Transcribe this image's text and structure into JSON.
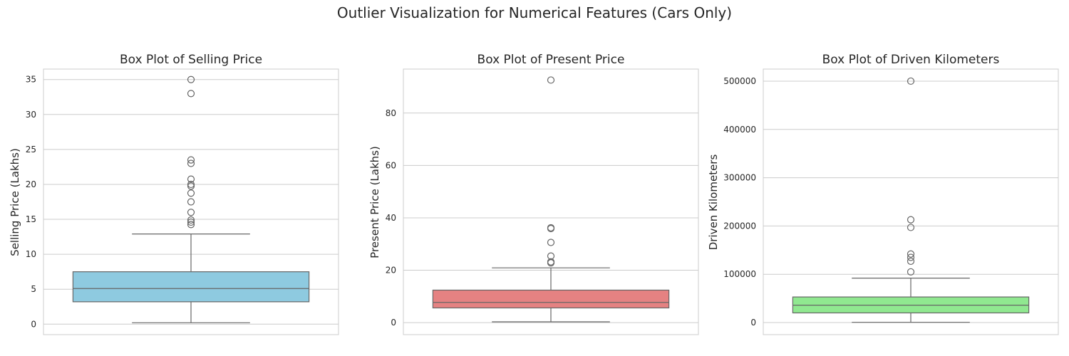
{
  "figure_title": "Outlier Visualization for Numerical Features (Cars Only)",
  "chart_data": [
    {
      "type": "box",
      "title": "Box Plot of Selling Price",
      "xlabel": "",
      "ylabel": "Selling Price (Lakhs)",
      "ylim": [
        -1.5,
        36.5
      ],
      "yticks": [
        0,
        5,
        10,
        15,
        20,
        25,
        30,
        35
      ],
      "ytick_labels": [
        "0",
        "5",
        "10",
        "15",
        "20",
        "25",
        "30",
        "35"
      ],
      "color": "#8ecae0",
      "grid": true,
      "box": {
        "min": 0.2,
        "q1": 3.2,
        "median": 5.1,
        "q3": 7.5,
        "max": 12.9
      },
      "outliers": [
        35.0,
        33.0,
        23.5,
        23.0,
        20.75,
        20.0,
        19.75,
        18.75,
        17.5,
        16.0,
        14.9,
        14.6,
        14.25
      ]
    },
    {
      "type": "box",
      "title": "Box Plot of Present Price",
      "xlabel": "",
      "ylabel": "Present Price (Lakhs)",
      "ylim": [
        -4.6,
        96.8
      ],
      "yticks": [
        0,
        20,
        40,
        60,
        80
      ],
      "ytick_labels": [
        "0",
        "20",
        "40",
        "60",
        "80"
      ],
      "color": "#e58282",
      "grid": true,
      "box": {
        "min": 0.3,
        "q1": 5.6,
        "median": 7.7,
        "q3": 12.4,
        "max": 20.9
      },
      "outliers": [
        92.6,
        36.2,
        35.9,
        30.6,
        25.4,
        23.2,
        22.8
      ]
    },
    {
      "type": "box",
      "title": "Box Plot of Driven Kilometers",
      "xlabel": "",
      "ylabel": "Driven Kilometers",
      "ylim": [
        -25000,
        525000
      ],
      "yticks": [
        0,
        100000,
        200000,
        300000,
        400000,
        500000
      ],
      "ytick_labels": [
        "0",
        "100000",
        "200000",
        "300000",
        "400000",
        "500000"
      ],
      "color": "#90e890",
      "grid": true,
      "box": {
        "min": 500,
        "q1": 20000,
        "median": 36000,
        "q3": 53000,
        "max": 92000
      },
      "outliers": [
        500000,
        213000,
        197000,
        142000,
        135000,
        127000,
        105000
      ]
    }
  ]
}
